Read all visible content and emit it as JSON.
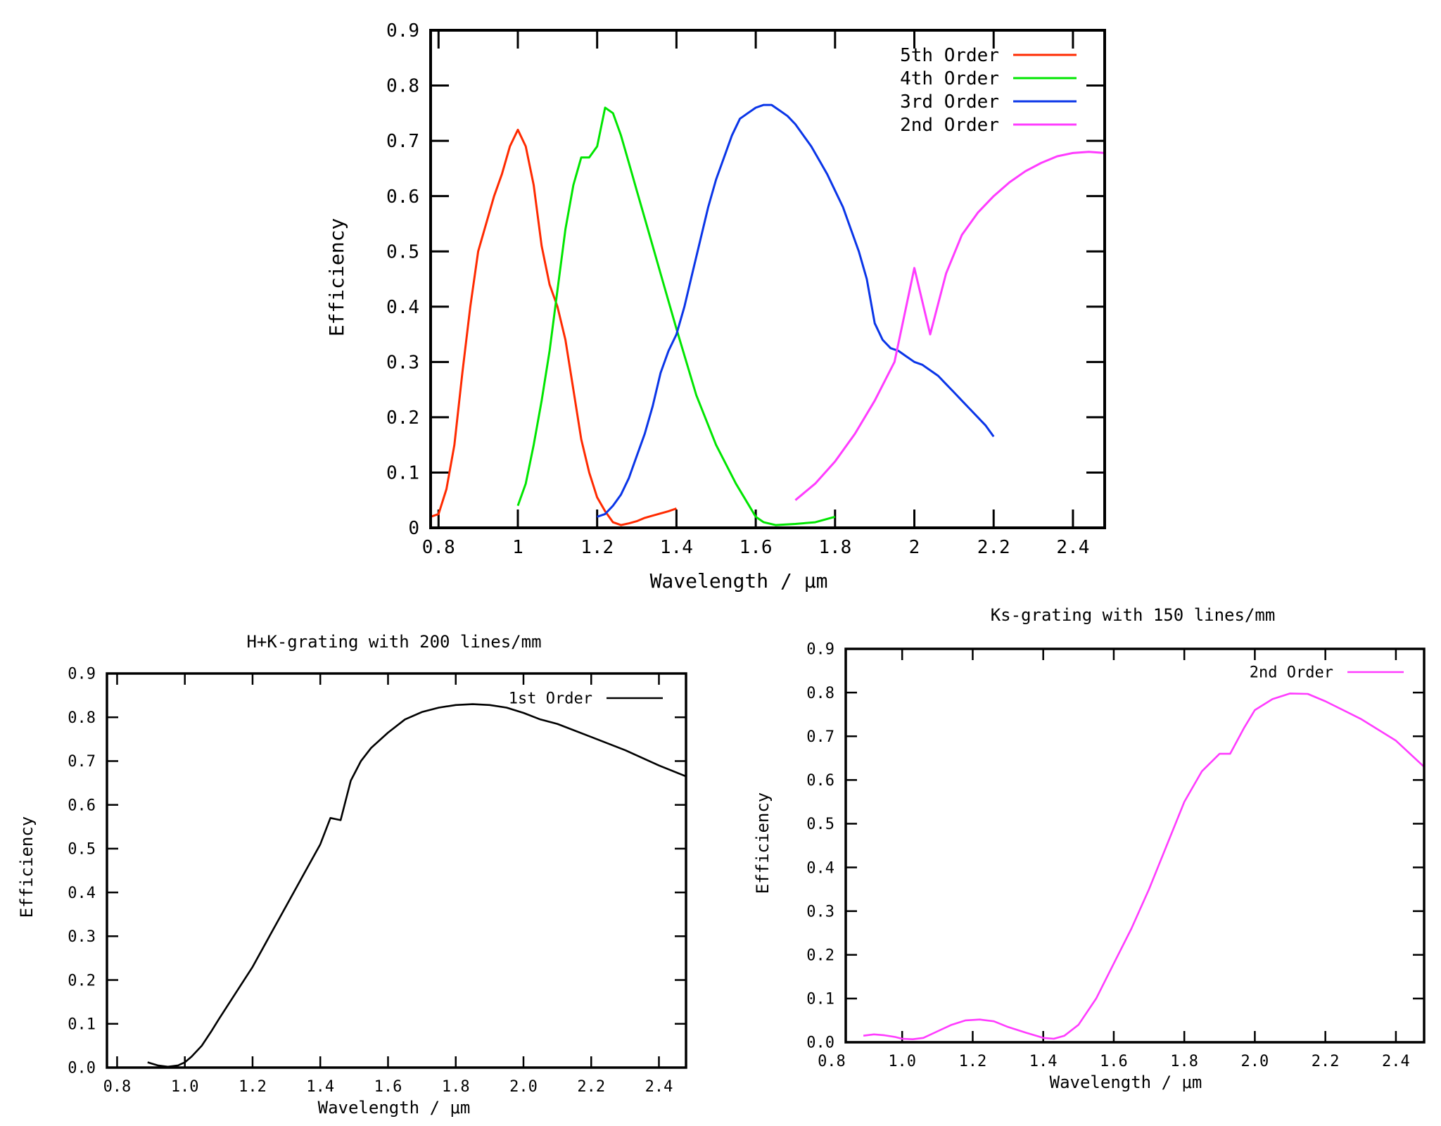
{
  "chart_data": [
    {
      "type": "line",
      "title": "",
      "xlabel": "Wavelength / μm",
      "ylabel": "Efficiency",
      "xlim": [
        0.78,
        2.48
      ],
      "ylim": [
        0,
        0.9
      ],
      "xticks": [
        "0.8",
        "1",
        "1.2",
        "1.4",
        "1.6",
        "1.8",
        "2",
        "2.2",
        "2.4"
      ],
      "yticks": [
        "0",
        "0.1",
        "0.2",
        "0.3",
        "0.4",
        "0.5",
        "0.6",
        "0.7",
        "0.8",
        "0.9"
      ],
      "grid": false,
      "legend_position": "top-right",
      "series": [
        {
          "name": "5th Order",
          "color": "#ff2a00",
          "x": [
            0.78,
            0.8,
            0.82,
            0.84,
            0.86,
            0.88,
            0.9,
            0.92,
            0.94,
            0.96,
            0.98,
            1.0,
            1.02,
            1.04,
            1.06,
            1.08,
            1.1,
            1.12,
            1.14,
            1.16,
            1.18,
            1.2,
            1.22,
            1.24,
            1.26,
            1.28,
            1.3,
            1.32,
            1.34,
            1.36,
            1.38,
            1.4
          ],
          "y": [
            0.02,
            0.025,
            0.07,
            0.15,
            0.28,
            0.4,
            0.5,
            0.55,
            0.6,
            0.64,
            0.69,
            0.72,
            0.69,
            0.62,
            0.51,
            0.44,
            0.4,
            0.34,
            0.25,
            0.16,
            0.1,
            0.055,
            0.03,
            0.01,
            0.005,
            0.008,
            0.012,
            0.018,
            0.022,
            0.026,
            0.03,
            0.035
          ]
        },
        {
          "name": "4th Order",
          "color": "#00e600",
          "x": [
            1.0,
            1.02,
            1.04,
            1.06,
            1.08,
            1.1,
            1.12,
            1.14,
            1.16,
            1.18,
            1.2,
            1.22,
            1.24,
            1.26,
            1.28,
            1.3,
            1.32,
            1.34,
            1.36,
            1.38,
            1.4,
            1.45,
            1.5,
            1.55,
            1.6,
            1.62,
            1.65,
            1.7,
            1.75,
            1.8
          ],
          "y": [
            0.04,
            0.08,
            0.15,
            0.23,
            0.32,
            0.43,
            0.54,
            0.62,
            0.67,
            0.67,
            0.69,
            0.76,
            0.75,
            0.71,
            0.66,
            0.61,
            0.56,
            0.51,
            0.46,
            0.41,
            0.36,
            0.24,
            0.15,
            0.08,
            0.02,
            0.01,
            0.005,
            0.007,
            0.01,
            0.02
          ]
        },
        {
          "name": "3rd Order",
          "color": "#0a35e8",
          "x": [
            1.2,
            1.22,
            1.24,
            1.26,
            1.28,
            1.3,
            1.32,
            1.34,
            1.36,
            1.38,
            1.4,
            1.42,
            1.44,
            1.46,
            1.48,
            1.5,
            1.52,
            1.54,
            1.56,
            1.58,
            1.6,
            1.62,
            1.64,
            1.66,
            1.68,
            1.7,
            1.72,
            1.74,
            1.76,
            1.78,
            1.8,
            1.82,
            1.84,
            1.86,
            1.88,
            1.9,
            1.92,
            1.94,
            1.96,
            1.98,
            2.0,
            2.02,
            2.04,
            2.06,
            2.08,
            2.1,
            2.12,
            2.14,
            2.16,
            2.18,
            2.2
          ],
          "y": [
            0.02,
            0.025,
            0.04,
            0.06,
            0.09,
            0.13,
            0.17,
            0.22,
            0.28,
            0.32,
            0.35,
            0.4,
            0.46,
            0.52,
            0.58,
            0.63,
            0.67,
            0.71,
            0.74,
            0.75,
            0.76,
            0.765,
            0.765,
            0.755,
            0.745,
            0.73,
            0.71,
            0.69,
            0.665,
            0.64,
            0.61,
            0.58,
            0.54,
            0.5,
            0.45,
            0.37,
            0.34,
            0.325,
            0.32,
            0.31,
            0.3,
            0.295,
            0.285,
            0.275,
            0.26,
            0.245,
            0.23,
            0.215,
            0.2,
            0.185,
            0.165
          ]
        },
        {
          "name": "2nd Order",
          "color": "#ff3cff",
          "x": [
            1.7,
            1.75,
            1.8,
            1.85,
            1.9,
            1.95,
            2.0,
            2.04,
            2.08,
            2.12,
            2.16,
            2.2,
            2.24,
            2.28,
            2.32,
            2.36,
            2.4,
            2.44,
            2.48
          ],
          "y": [
            0.05,
            0.08,
            0.12,
            0.17,
            0.23,
            0.3,
            0.47,
            0.35,
            0.46,
            0.53,
            0.57,
            0.6,
            0.625,
            0.645,
            0.66,
            0.672,
            0.678,
            0.68,
            0.678
          ]
        }
      ]
    },
    {
      "type": "line",
      "title": "H+K-grating with 200 lines/mm",
      "xlabel": "Wavelength / μm",
      "ylabel": "Efficiency",
      "xlim": [
        0.77,
        2.48
      ],
      "ylim": [
        0,
        0.9
      ],
      "xticks": [
        "0.8",
        "1.0",
        "1.2",
        "1.4",
        "1.6",
        "1.8",
        "2.0",
        "2.2",
        "2.4"
      ],
      "yticks": [
        "0.0",
        "0.1",
        "0.2",
        "0.3",
        "0.4",
        "0.5",
        "0.6",
        "0.7",
        "0.8",
        "0.9"
      ],
      "grid": false,
      "legend_position": "top-right",
      "series": [
        {
          "name": "1st Order",
          "color": "#000000",
          "x": [
            0.89,
            0.92,
            0.95,
            0.98,
            1.0,
            1.02,
            1.05,
            1.08,
            1.1,
            1.15,
            1.2,
            1.25,
            1.3,
            1.35,
            1.4,
            1.43,
            1.46,
            1.49,
            1.52,
            1.55,
            1.6,
            1.65,
            1.7,
            1.75,
            1.8,
            1.85,
            1.9,
            1.95,
            2.0,
            2.05,
            2.1,
            2.2,
            2.3,
            2.4,
            2.48
          ],
          "y": [
            0.012,
            0.005,
            0.002,
            0.005,
            0.012,
            0.025,
            0.05,
            0.085,
            0.11,
            0.17,
            0.23,
            0.3,
            0.37,
            0.44,
            0.51,
            0.57,
            0.565,
            0.655,
            0.7,
            0.73,
            0.765,
            0.795,
            0.812,
            0.822,
            0.828,
            0.83,
            0.828,
            0.822,
            0.81,
            0.795,
            0.785,
            0.755,
            0.725,
            0.69,
            0.665
          ]
        }
      ]
    },
    {
      "type": "line",
      "title": "Ks-grating with 150 lines/mm",
      "xlabel": "Wavelength / μm",
      "ylabel": "Efficiency",
      "xlim": [
        0.84,
        2.48
      ],
      "ylim": [
        0,
        0.9
      ],
      "xticks": [
        "0.8",
        "1.0",
        "1.2",
        "1.4",
        "1.6",
        "1.8",
        "2.0",
        "2.2",
        "2.4"
      ],
      "yticks": [
        "0.0",
        "0.1",
        "0.2",
        "0.3",
        "0.4",
        "0.5",
        "0.6",
        "0.7",
        "0.8",
        "0.9"
      ],
      "grid": false,
      "legend_position": "top-right",
      "series": [
        {
          "name": "2nd Order",
          "color": "#ff3cff",
          "x": [
            0.89,
            0.92,
            0.95,
            0.98,
            1.0,
            1.03,
            1.06,
            1.1,
            1.14,
            1.18,
            1.22,
            1.26,
            1.3,
            1.35,
            1.4,
            1.43,
            1.46,
            1.5,
            1.55,
            1.6,
            1.65,
            1.7,
            1.75,
            1.8,
            1.85,
            1.9,
            1.93,
            1.97,
            2.0,
            2.05,
            2.1,
            2.15,
            2.2,
            2.3,
            2.4,
            2.48
          ],
          "y": [
            0.015,
            0.018,
            0.016,
            0.012,
            0.008,
            0.007,
            0.01,
            0.025,
            0.04,
            0.05,
            0.052,
            0.048,
            0.035,
            0.022,
            0.01,
            0.008,
            0.015,
            0.04,
            0.1,
            0.18,
            0.26,
            0.35,
            0.45,
            0.55,
            0.62,
            0.66,
            0.66,
            0.72,
            0.76,
            0.785,
            0.798,
            0.797,
            0.78,
            0.74,
            0.69,
            0.63
          ]
        }
      ]
    }
  ]
}
